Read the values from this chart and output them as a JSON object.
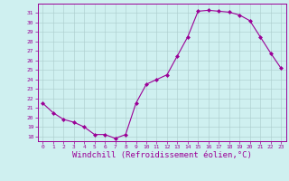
{
  "x": [
    0,
    1,
    2,
    3,
    4,
    5,
    6,
    7,
    8,
    9,
    10,
    11,
    12,
    13,
    14,
    15,
    16,
    17,
    18,
    19,
    20,
    21,
    22,
    23
  ],
  "y": [
    21.5,
    20.5,
    19.8,
    19.5,
    19.0,
    18.2,
    18.2,
    17.8,
    18.2,
    21.5,
    23.5,
    24.0,
    24.5,
    26.5,
    28.5,
    31.2,
    31.3,
    31.2,
    31.1,
    30.8,
    30.2,
    28.5,
    26.8,
    25.2
  ],
  "line_color": "#9b0096",
  "marker": "D",
  "markersize": 2,
  "linewidth": 0.8,
  "bg_color": "#cff0f0",
  "grid_color": "#aacccc",
  "xlabel": "Windchill (Refroidissement éolien,°C)",
  "xlabel_color": "#9b0096",
  "ylim": [
    17.5,
    32
  ],
  "xlim": [
    -0.5,
    23.5
  ],
  "yticks": [
    18,
    19,
    20,
    21,
    22,
    23,
    24,
    25,
    26,
    27,
    28,
    29,
    30,
    31
  ],
  "xticks": [
    0,
    1,
    2,
    3,
    4,
    5,
    6,
    7,
    8,
    9,
    10,
    11,
    12,
    13,
    14,
    15,
    16,
    17,
    18,
    19,
    20,
    21,
    22,
    23
  ],
  "tick_color": "#9b0096",
  "tick_fontsize": 4.5,
  "xlabel_fontsize": 6.5,
  "spine_color": "#9b0096"
}
